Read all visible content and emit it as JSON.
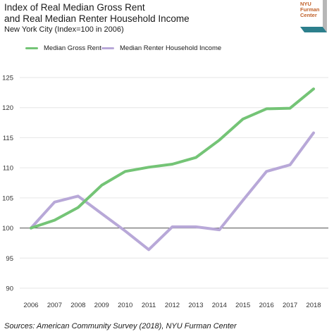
{
  "header": {
    "title_line1": "Index of Real Median Gross Rent",
    "title_line2": "and Real Median Renter Household Income",
    "subtitle": "New York City (Index=100 in 2006)"
  },
  "logo": {
    "line1": "NYU",
    "line2": "Furman",
    "line3": "Center",
    "colors": {
      "text": "#c0612a",
      "teal": "#2c7f8c",
      "gray": "#b7b7b7"
    }
  },
  "source": "Sources: American Community Survey (2018), NYU Furman Center",
  "chart_data": {
    "type": "line",
    "x": [
      "2006",
      "2007",
      "2008",
      "2009",
      "2010",
      "2011",
      "2012",
      "2013",
      "2014",
      "2015",
      "2016",
      "2017",
      "2018"
    ],
    "ylim": [
      90,
      126
    ],
    "yticks": [
      "90",
      "95",
      "100",
      "105",
      "110",
      "115",
      "120",
      "125"
    ],
    "reference_line": 100,
    "grid": true,
    "legend_position": "top-left",
    "series": [
      {
        "name": "Median Gross Rent",
        "color": "#74c476",
        "values": [
          100,
          101.3,
          103.4,
          107.1,
          109.4,
          110.1,
          110.6,
          111.7,
          114.6,
          118.1,
          119.8,
          119.9,
          123.1
        ]
      },
      {
        "name": "Median Renter Household Income",
        "color": "#b8a8d8",
        "values": [
          100,
          104.3,
          105.3,
          102.4,
          99.5,
          96.4,
          100.2,
          100.2,
          99.7,
          104.6,
          109.4,
          110.5,
          115.8
        ]
      }
    ]
  }
}
